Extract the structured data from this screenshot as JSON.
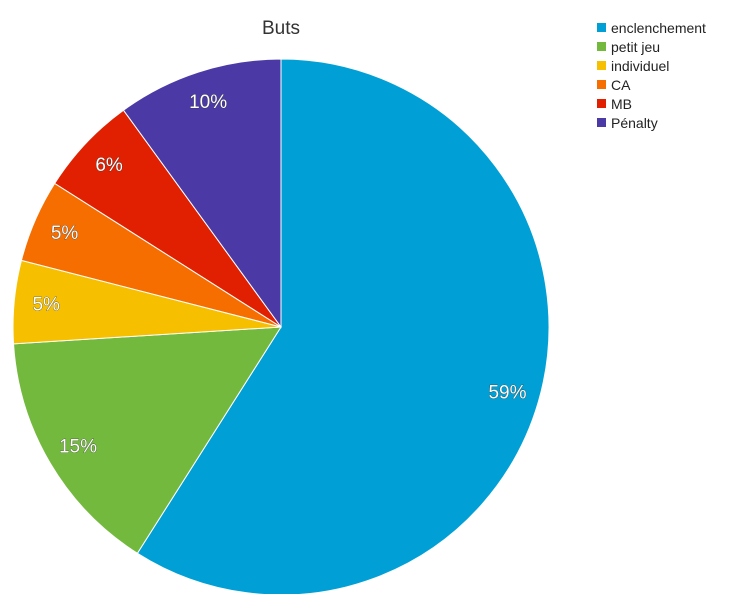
{
  "chart_data": {
    "type": "pie",
    "title": "Buts",
    "legend_position": "top-right",
    "start": "top",
    "direction": "clockwise",
    "slices": [
      {
        "name": "enclenchement",
        "value": 59,
        "label": "59%",
        "color": "#00a0d6"
      },
      {
        "name": "petit jeu",
        "value": 15,
        "label": "15%",
        "color": "#73b93e"
      },
      {
        "name": "individuel",
        "value": 5,
        "label": "5%",
        "color": "#f6c000"
      },
      {
        "name": "CA",
        "value": 5,
        "label": "5%",
        "color": "#f66d00"
      },
      {
        "name": "MB",
        "value": 6,
        "label": "6%",
        "color": "#e02000"
      },
      {
        "name": "Pénalty",
        "value": 10,
        "label": "10%",
        "color": "#4b3aa6"
      }
    ]
  }
}
